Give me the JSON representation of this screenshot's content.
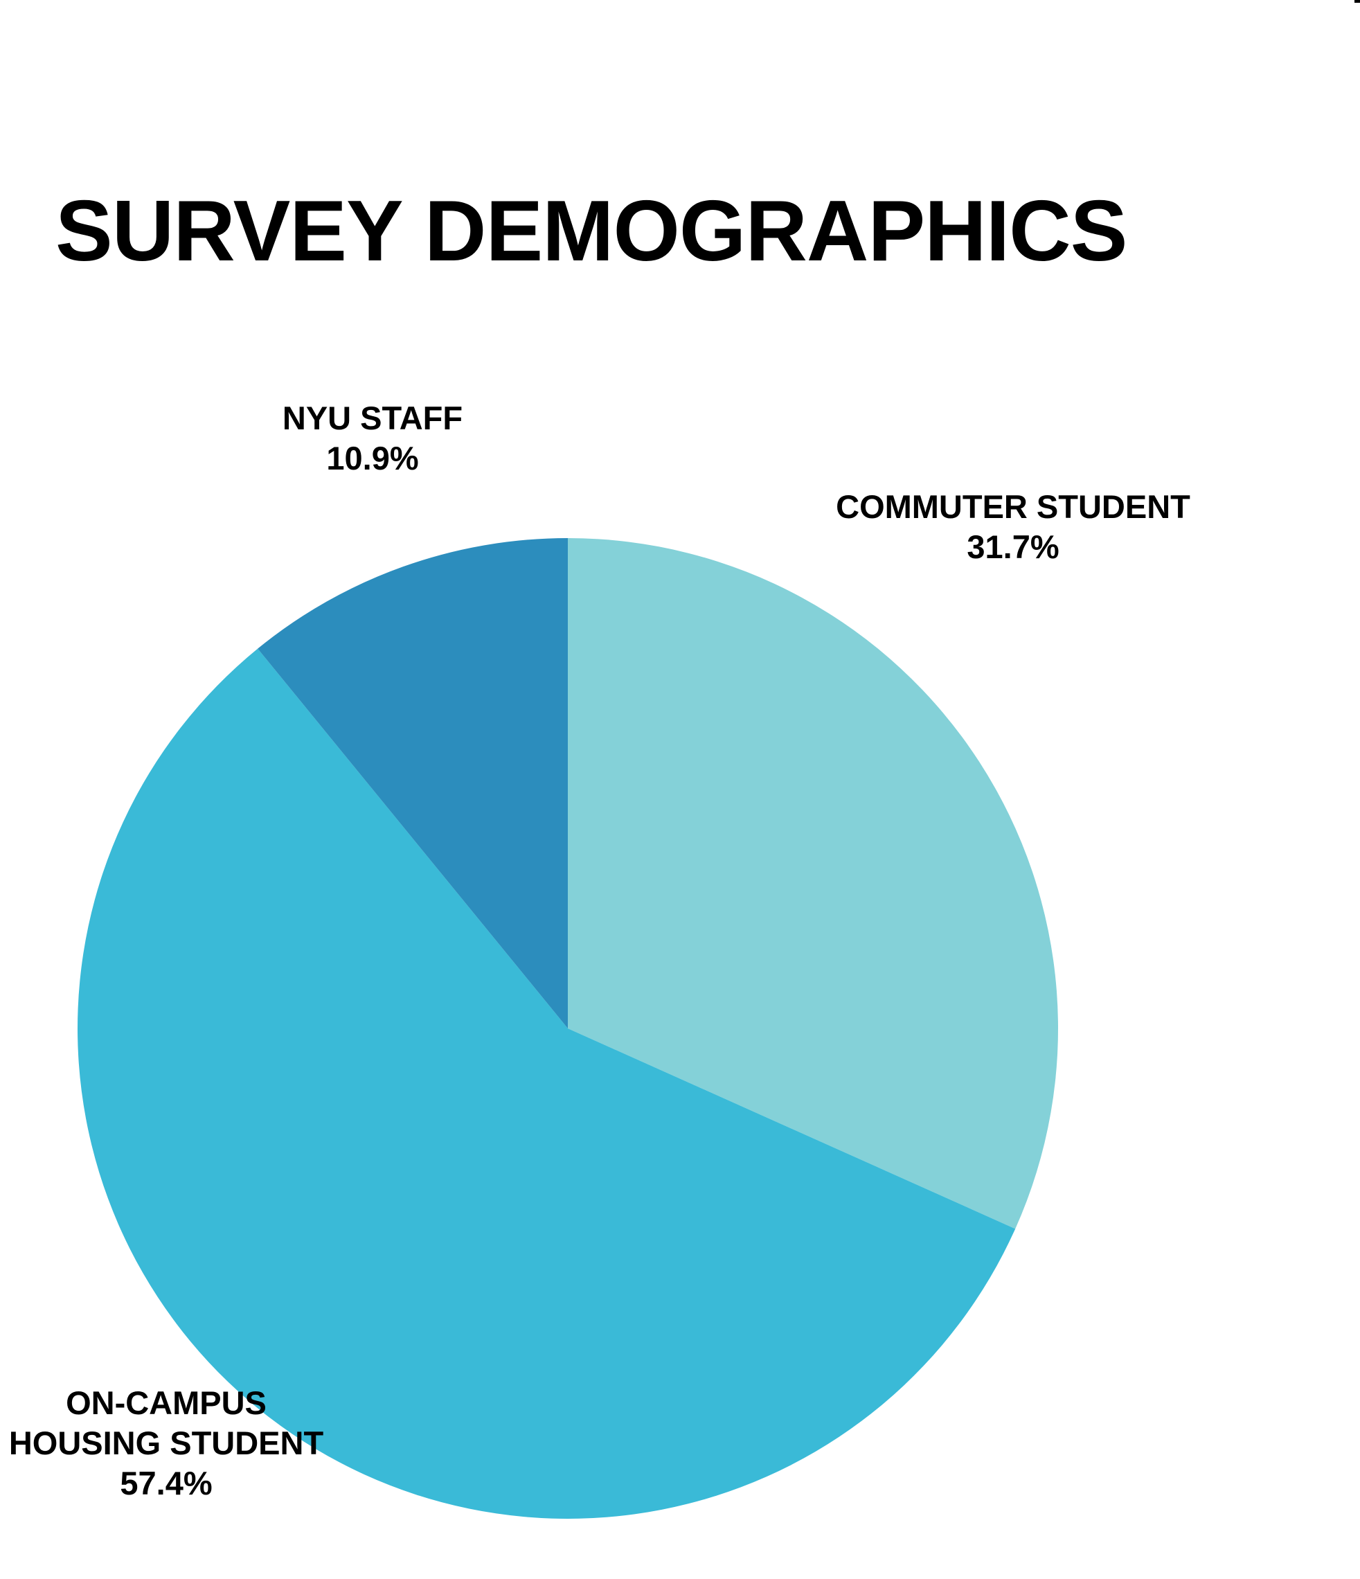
{
  "chart_data": {
    "type": "pie",
    "title": "SURVEY DEMOGRAPHICS",
    "slices": [
      {
        "label_lines": [
          "COMMUTER STUDENT"
        ],
        "value": 31.7,
        "value_label": "31.7%",
        "color": "#84D1D8"
      },
      {
        "label_lines": [
          "ON-CAMPUS",
          "HOUSING STUDENT"
        ],
        "value": 57.4,
        "value_label": "57.4%",
        "color": "#3ABAD7"
      },
      {
        "label_lines": [
          "NYU STAFF"
        ],
        "value": 10.9,
        "value_label": "10.9%",
        "color": "#2C8DBD"
      }
    ],
    "legend": "none",
    "start_angle": "12 o'clock, clockwise"
  }
}
